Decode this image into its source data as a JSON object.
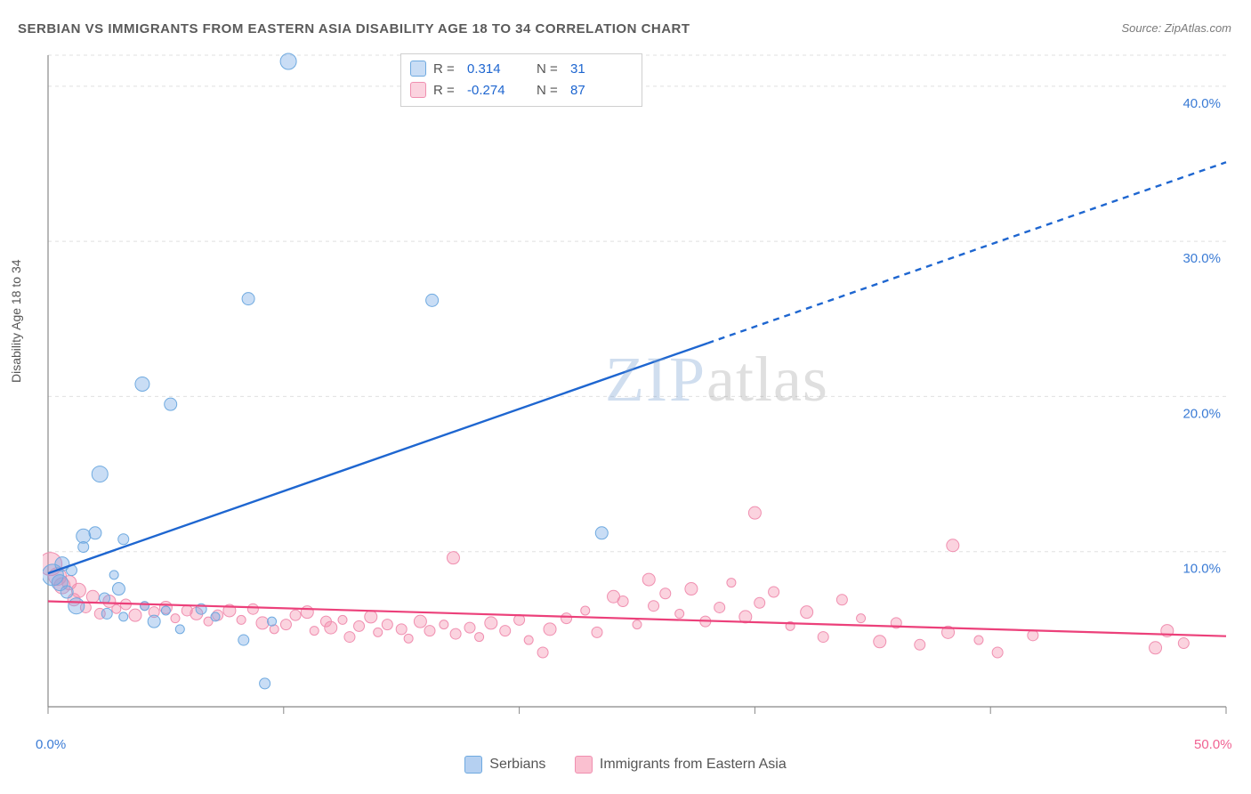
{
  "title": "SERBIAN VS IMMIGRANTS FROM EASTERN ASIA DISABILITY AGE 18 TO 34 CORRELATION CHART",
  "source": "Source: ZipAtlas.com",
  "ylabel": "Disability Age 18 to 34",
  "watermark": {
    "part1": "ZIP",
    "part2": "atlas"
  },
  "chart": {
    "type": "scatter-correlation",
    "background_color": "#ffffff",
    "grid_color": "#e0e0e0",
    "grid_dash": "4,4",
    "axis_color": "#888888",
    "tick_color": "#888888",
    "xlim": [
      0,
      50
    ],
    "ylim": [
      0,
      42
    ],
    "xticks": [
      0,
      10,
      20,
      30,
      40,
      50
    ],
    "xtick_labels": [
      "0.0%",
      "",
      "",
      "",
      "",
      "50.0%"
    ],
    "xtick_label_color_first": "#3a7bd5",
    "xtick_label_color_last": "#f06292",
    "yticks": [
      10,
      20,
      30,
      40
    ],
    "ytick_labels": [
      "10.0%",
      "20.0%",
      "30.0%",
      "40.0%"
    ],
    "ytick_label_color": "#3a7bd5",
    "series": [
      {
        "name": "Serbians",
        "color_fill": "rgba(120,170,230,0.40)",
        "color_stroke": "#6faae0",
        "marker_radius_range": [
          5,
          14
        ],
        "trend": {
          "color": "#1e66d0",
          "width": 2.4,
          "dash_after_x": 28,
          "y_at_x0": 8.6,
          "slope": 0.53
        },
        "stats": {
          "R": "0.314",
          "N": "31"
        },
        "stats_color": "#1e66d0",
        "points": [
          {
            "x": 0.2,
            "y": 8.5,
            "r": 12
          },
          {
            "x": 0.5,
            "y": 8.0,
            "r": 9
          },
          {
            "x": 0.6,
            "y": 9.2,
            "r": 8
          },
          {
            "x": 0.8,
            "y": 7.4,
            "r": 7
          },
          {
            "x": 1.0,
            "y": 8.8,
            "r": 6
          },
          {
            "x": 1.2,
            "y": 6.5,
            "r": 9
          },
          {
            "x": 1.5,
            "y": 11.0,
            "r": 8
          },
          {
            "x": 1.5,
            "y": 10.3,
            "r": 6
          },
          {
            "x": 2.0,
            "y": 11.2,
            "r": 7
          },
          {
            "x": 2.2,
            "y": 15.0,
            "r": 9
          },
          {
            "x": 2.4,
            "y": 7.0,
            "r": 6
          },
          {
            "x": 2.5,
            "y": 6.0,
            "r": 6
          },
          {
            "x": 2.8,
            "y": 8.5,
            "r": 5
          },
          {
            "x": 3.0,
            "y": 7.6,
            "r": 7
          },
          {
            "x": 3.2,
            "y": 10.8,
            "r": 6
          },
          {
            "x": 3.2,
            "y": 5.8,
            "r": 5
          },
          {
            "x": 4.0,
            "y": 20.8,
            "r": 8
          },
          {
            "x": 4.1,
            "y": 6.5,
            "r": 5
          },
          {
            "x": 4.5,
            "y": 5.5,
            "r": 7
          },
          {
            "x": 5.0,
            "y": 6.2,
            "r": 5
          },
          {
            "x": 5.2,
            "y": 19.5,
            "r": 7
          },
          {
            "x": 5.6,
            "y": 5.0,
            "r": 5
          },
          {
            "x": 6.5,
            "y": 6.3,
            "r": 6
          },
          {
            "x": 7.1,
            "y": 5.8,
            "r": 5
          },
          {
            "x": 8.3,
            "y": 4.3,
            "r": 6
          },
          {
            "x": 8.5,
            "y": 26.3,
            "r": 7
          },
          {
            "x": 9.2,
            "y": 1.5,
            "r": 6
          },
          {
            "x": 9.5,
            "y": 5.5,
            "r": 5
          },
          {
            "x": 10.2,
            "y": 41.6,
            "r": 9
          },
          {
            "x": 16.3,
            "y": 26.2,
            "r": 7
          },
          {
            "x": 23.5,
            "y": 11.2,
            "r": 7
          }
        ]
      },
      {
        "name": "Immigrants from Eastern Asia",
        "color_fill": "rgba(245,140,170,0.38)",
        "color_stroke": "#f08fb0",
        "marker_radius_range": [
          5,
          13
        ],
        "trend": {
          "color": "#ec407a",
          "width": 2.2,
          "dash_after_x": 50,
          "y_at_x0": 6.8,
          "slope": -0.045
        },
        "stats": {
          "R": "-0.274",
          "N": "87"
        },
        "stats_color": "#1e66d0",
        "points": [
          {
            "x": 0.1,
            "y": 9.2,
            "r": 13
          },
          {
            "x": 0.4,
            "y": 8.4,
            "r": 10
          },
          {
            "x": 0.6,
            "y": 7.8,
            "r": 9
          },
          {
            "x": 0.9,
            "y": 8.0,
            "r": 8
          },
          {
            "x": 1.1,
            "y": 6.9,
            "r": 7
          },
          {
            "x": 1.3,
            "y": 7.5,
            "r": 8
          },
          {
            "x": 1.6,
            "y": 6.4,
            "r": 6
          },
          {
            "x": 1.9,
            "y": 7.1,
            "r": 7
          },
          {
            "x": 2.2,
            "y": 6.0,
            "r": 6
          },
          {
            "x": 2.6,
            "y": 6.8,
            "r": 7
          },
          {
            "x": 2.9,
            "y": 6.3,
            "r": 5
          },
          {
            "x": 3.3,
            "y": 6.6,
            "r": 6
          },
          {
            "x": 3.7,
            "y": 5.9,
            "r": 7
          },
          {
            "x": 4.1,
            "y": 6.5,
            "r": 5
          },
          {
            "x": 4.5,
            "y": 6.1,
            "r": 6
          },
          {
            "x": 5.0,
            "y": 6.4,
            "r": 7
          },
          {
            "x": 5.4,
            "y": 5.7,
            "r": 5
          },
          {
            "x": 5.9,
            "y": 6.2,
            "r": 6
          },
          {
            "x": 6.3,
            "y": 6.0,
            "r": 7
          },
          {
            "x": 6.8,
            "y": 5.5,
            "r": 5
          },
          {
            "x": 7.2,
            "y": 5.9,
            "r": 6
          },
          {
            "x": 7.7,
            "y": 6.2,
            "r": 7
          },
          {
            "x": 8.2,
            "y": 5.6,
            "r": 5
          },
          {
            "x": 8.7,
            "y": 6.3,
            "r": 6
          },
          {
            "x": 9.1,
            "y": 5.4,
            "r": 7
          },
          {
            "x": 9.6,
            "y": 5.0,
            "r": 5
          },
          {
            "x": 10.1,
            "y": 5.3,
            "r": 6
          },
          {
            "x": 10.5,
            "y": 5.9,
            "r": 6
          },
          {
            "x": 11.0,
            "y": 6.1,
            "r": 7
          },
          {
            "x": 11.3,
            "y": 4.9,
            "r": 5
          },
          {
            "x": 11.8,
            "y": 5.5,
            "r": 6
          },
          {
            "x": 12.0,
            "y": 5.1,
            "r": 7
          },
          {
            "x": 12.5,
            "y": 5.6,
            "r": 5
          },
          {
            "x": 12.8,
            "y": 4.5,
            "r": 6
          },
          {
            "x": 13.2,
            "y": 5.2,
            "r": 6
          },
          {
            "x": 13.7,
            "y": 5.8,
            "r": 7
          },
          {
            "x": 14.0,
            "y": 4.8,
            "r": 5
          },
          {
            "x": 14.4,
            "y": 5.3,
            "r": 6
          },
          {
            "x": 15.0,
            "y": 5.0,
            "r": 6
          },
          {
            "x": 15.3,
            "y": 4.4,
            "r": 5
          },
          {
            "x": 15.8,
            "y": 5.5,
            "r": 7
          },
          {
            "x": 16.2,
            "y": 4.9,
            "r": 6
          },
          {
            "x": 16.8,
            "y": 5.3,
            "r": 5
          },
          {
            "x": 17.2,
            "y": 9.6,
            "r": 7
          },
          {
            "x": 17.3,
            "y": 4.7,
            "r": 6
          },
          {
            "x": 17.9,
            "y": 5.1,
            "r": 6
          },
          {
            "x": 18.3,
            "y": 4.5,
            "r": 5
          },
          {
            "x": 18.8,
            "y": 5.4,
            "r": 7
          },
          {
            "x": 19.4,
            "y": 4.9,
            "r": 6
          },
          {
            "x": 20.0,
            "y": 5.6,
            "r": 6
          },
          {
            "x": 20.4,
            "y": 4.3,
            "r": 5
          },
          {
            "x": 21.0,
            "y": 3.5,
            "r": 6
          },
          {
            "x": 21.3,
            "y": 5.0,
            "r": 7
          },
          {
            "x": 22.0,
            "y": 5.7,
            "r": 6
          },
          {
            "x": 22.8,
            "y": 6.2,
            "r": 5
          },
          {
            "x": 23.3,
            "y": 4.8,
            "r": 6
          },
          {
            "x": 24.0,
            "y": 7.1,
            "r": 7
          },
          {
            "x": 24.4,
            "y": 6.8,
            "r": 6
          },
          {
            "x": 25.0,
            "y": 5.3,
            "r": 5
          },
          {
            "x": 25.5,
            "y": 8.2,
            "r": 7
          },
          {
            "x": 25.7,
            "y": 6.5,
            "r": 6
          },
          {
            "x": 26.2,
            "y": 7.3,
            "r": 6
          },
          {
            "x": 26.8,
            "y": 6.0,
            "r": 5
          },
          {
            "x": 27.3,
            "y": 7.6,
            "r": 7
          },
          {
            "x": 27.9,
            "y": 5.5,
            "r": 6
          },
          {
            "x": 28.5,
            "y": 6.4,
            "r": 6
          },
          {
            "x": 29.0,
            "y": 8.0,
            "r": 5
          },
          {
            "x": 29.6,
            "y": 5.8,
            "r": 7
          },
          {
            "x": 30.0,
            "y": 12.5,
            "r": 7
          },
          {
            "x": 30.2,
            "y": 6.7,
            "r": 6
          },
          {
            "x": 30.8,
            "y": 7.4,
            "r": 6
          },
          {
            "x": 31.5,
            "y": 5.2,
            "r": 5
          },
          {
            "x": 32.2,
            "y": 6.1,
            "r": 7
          },
          {
            "x": 32.9,
            "y": 4.5,
            "r": 6
          },
          {
            "x": 33.7,
            "y": 6.9,
            "r": 6
          },
          {
            "x": 34.5,
            "y": 5.7,
            "r": 5
          },
          {
            "x": 35.3,
            "y": 4.2,
            "r": 7
          },
          {
            "x": 36.0,
            "y": 5.4,
            "r": 6
          },
          {
            "x": 37.0,
            "y": 4.0,
            "r": 6
          },
          {
            "x": 38.2,
            "y": 4.8,
            "r": 7
          },
          {
            "x": 38.4,
            "y": 10.4,
            "r": 7
          },
          {
            "x": 39.5,
            "y": 4.3,
            "r": 5
          },
          {
            "x": 40.3,
            "y": 3.5,
            "r": 6
          },
          {
            "x": 41.8,
            "y": 4.6,
            "r": 6
          },
          {
            "x": 47.0,
            "y": 3.8,
            "r": 7
          },
          {
            "x": 47.5,
            "y": 4.9,
            "r": 7
          },
          {
            "x": 48.2,
            "y": 4.1,
            "r": 6
          }
        ]
      }
    ]
  },
  "bottom_legend": [
    {
      "label": "Serbians",
      "fill": "rgba(120,170,230,0.55)",
      "stroke": "#6faae0"
    },
    {
      "label": "Immigrants from Eastern Asia",
      "fill": "rgba(245,140,170,0.55)",
      "stroke": "#f08fb0"
    }
  ]
}
